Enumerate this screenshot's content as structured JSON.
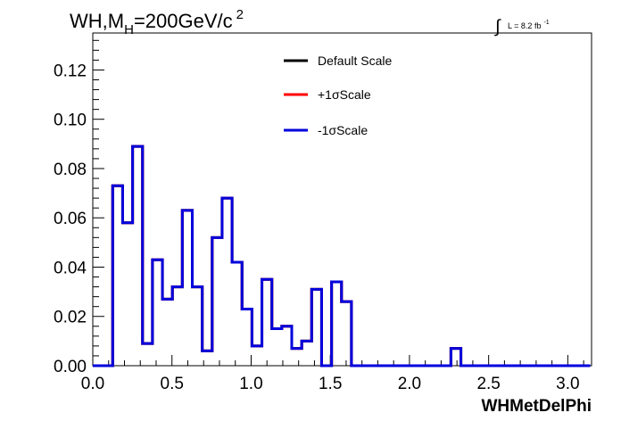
{
  "chart_data": {
    "type": "histogram",
    "title": "WH,M_H=200GeV/c^2",
    "title_parts": {
      "main": "WH,M",
      "sub": "H",
      "rest": "=200GeV/c",
      "sup": "2"
    },
    "lumi": {
      "integral": "∫",
      "text": "L = 8.2 fb",
      "sup": "-1"
    },
    "xlabel": "WHMetDelPhi",
    "ylabel": "",
    "xlim": [
      0,
      3.15
    ],
    "ylim": [
      0,
      0.135
    ],
    "xticks": [
      "0.0",
      "0.5",
      "1.0",
      "1.5",
      "2.0",
      "2.5",
      "3.0"
    ],
    "yticks": [
      "0.00",
      "0.02",
      "0.04",
      "0.06",
      "0.08",
      "0.10",
      "0.12"
    ],
    "legend_position": "top-center",
    "grid": false,
    "bin_edges": [
      0,
      0.0628,
      0.1257,
      0.1885,
      0.2513,
      0.3142,
      0.377,
      0.4398,
      0.5027,
      0.5655,
      0.6283,
      0.6912,
      0.754,
      0.8168,
      0.8796,
      0.9425,
      1.0053,
      1.0681,
      1.131,
      1.1938,
      1.2566,
      1.3195,
      1.3823,
      1.4451,
      1.508,
      1.5708,
      1.6336,
      1.6965,
      1.7593,
      1.8221,
      1.885,
      1.9478,
      2.0106,
      2.0735,
      2.1363,
      2.1991,
      2.2619,
      2.3248,
      2.3876,
      2.4504,
      2.5133,
      2.5761,
      2.6389,
      2.7018,
      2.7646,
      2.8274,
      2.8903,
      2.9531,
      3.0159,
      3.0788,
      3.1416
    ],
    "series": [
      {
        "name": "Default Scale",
        "color": "#000000",
        "values": [
          0,
          0,
          0.073,
          0.058,
          0.089,
          0.009,
          0.043,
          0.027,
          0.032,
          0.063,
          0.032,
          0.006,
          0.052,
          0.068,
          0.042,
          0.023,
          0.008,
          0.035,
          0.015,
          0.016,
          0.007,
          0.01,
          0.031,
          0,
          0.034,
          0.026,
          0,
          0,
          0,
          0,
          0,
          0,
          0,
          0,
          0,
          0,
          0.007,
          0,
          0,
          0,
          0,
          0,
          0,
          0,
          0,
          0,
          0,
          0,
          0,
          0
        ]
      },
      {
        "name": "+1σScale",
        "color": "#ff0000",
        "values": [
          0,
          0,
          0.073,
          0.058,
          0.089,
          0.009,
          0.043,
          0.027,
          0.032,
          0.063,
          0.032,
          0.006,
          0.052,
          0.068,
          0.042,
          0.023,
          0.008,
          0.035,
          0.015,
          0.016,
          0.007,
          0.01,
          0.031,
          0,
          0.034,
          0.026,
          0,
          0,
          0,
          0,
          0,
          0,
          0,
          0,
          0,
          0,
          0.007,
          0,
          0,
          0,
          0,
          0,
          0,
          0,
          0,
          0,
          0,
          0,
          0,
          0
        ]
      },
      {
        "name": "-1σScale",
        "color": "#0000dd",
        "values": [
          0,
          0,
          0.073,
          0.058,
          0.089,
          0.009,
          0.043,
          0.027,
          0.032,
          0.063,
          0.032,
          0.006,
          0.052,
          0.068,
          0.042,
          0.023,
          0.008,
          0.035,
          0.015,
          0.016,
          0.007,
          0.01,
          0.031,
          0,
          0.034,
          0.026,
          0,
          0,
          0,
          0,
          0,
          0,
          0,
          0,
          0,
          0,
          0.007,
          0,
          0,
          0,
          0,
          0,
          0,
          0,
          0,
          0,
          0,
          0,
          0,
          0
        ]
      }
    ]
  }
}
